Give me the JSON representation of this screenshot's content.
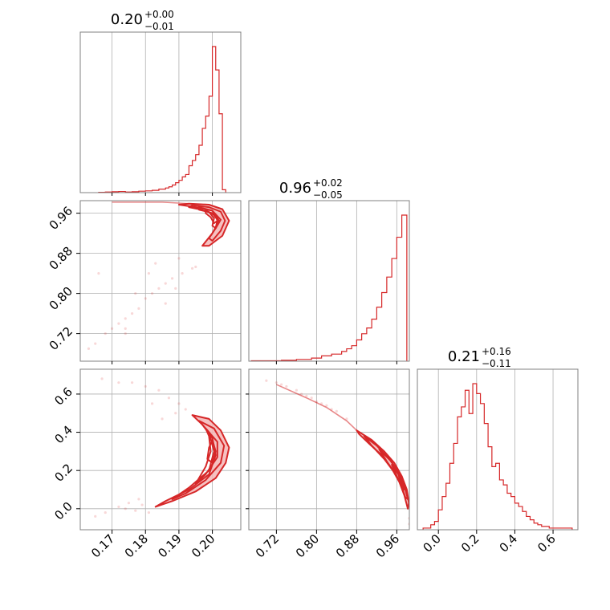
{
  "colors": {
    "series": "#d62728",
    "fill": "#f4b6b6",
    "grid": "#b0b0b0",
    "frame": "#808080"
  },
  "chart_data": {
    "type": "corner",
    "grid": true,
    "parameters": [
      {
        "title": "0.20",
        "title_plus": "+0.00",
        "title_minus": "−0.01",
        "range": [
          0.1605,
          0.2085
        ],
        "ticks": [
          0.17,
          0.18,
          0.19,
          0.2
        ],
        "tick_labels": [
          "0.17",
          "0.18",
          "0.19",
          "0.20"
        ]
      },
      {
        "title": "0.96",
        "title_plus": "+0.02",
        "title_minus": "−0.05",
        "range": [
          0.665,
          0.985
        ],
        "ticks": [
          0.72,
          0.8,
          0.88,
          0.96
        ],
        "tick_labels": [
          "0.72",
          "0.80",
          "0.88",
          "0.96"
        ]
      },
      {
        "title": "0.21",
        "title_plus": "+0.16",
        "title_minus": "−0.11",
        "range": [
          -0.11,
          0.73
        ],
        "ticks": [
          0.0,
          0.2,
          0.4,
          0.6
        ],
        "tick_labels": [
          "0.0",
          "0.2",
          "0.4",
          "0.6"
        ]
      }
    ],
    "histograms": [
      {
        "parameter_index": 0,
        "edges": [
          0.166,
          0.168,
          0.17,
          0.172,
          0.174,
          0.176,
          0.178,
          0.18,
          0.182,
          0.184,
          0.186,
          0.187,
          0.188,
          0.189,
          0.19,
          0.191,
          0.192,
          0.193,
          0.194,
          0.195,
          0.196,
          0.197,
          0.198,
          0.199,
          0.2,
          0.201,
          0.202,
          0.203,
          0.204
        ],
        "counts": [
          1,
          2,
          3,
          4,
          2,
          3,
          5,
          6,
          8,
          12,
          16,
          20,
          26,
          34,
          42,
          54,
          62,
          92,
          110,
          130,
          162,
          220,
          262,
          330,
          500,
          420,
          270,
          10
        ]
      },
      {
        "parameter_index": 1,
        "edges": [
          0.67,
          0.7,
          0.73,
          0.76,
          0.79,
          0.81,
          0.83,
          0.85,
          0.86,
          0.87,
          0.88,
          0.89,
          0.9,
          0.91,
          0.92,
          0.93,
          0.94,
          0.95,
          0.96,
          0.97,
          0.98
        ],
        "counts": [
          1,
          1,
          2,
          4,
          7,
          12,
          16,
          22,
          28,
          35,
          48,
          62,
          75,
          95,
          122,
          155,
          190,
          232,
          280,
          330
        ]
      },
      {
        "parameter_index": 2,
        "edges": [
          -0.08,
          -0.04,
          -0.02,
          0.0,
          0.02,
          0.04,
          0.06,
          0.08,
          0.1,
          0.12,
          0.14,
          0.16,
          0.18,
          0.2,
          0.22,
          0.24,
          0.26,
          0.28,
          0.3,
          0.32,
          0.34,
          0.36,
          0.38,
          0.4,
          0.42,
          0.44,
          0.46,
          0.48,
          0.5,
          0.52,
          0.54,
          0.56,
          0.58,
          0.62,
          0.66,
          0.7
        ],
        "counts": [
          1,
          3,
          5,
          12,
          20,
          28,
          40,
          52,
          68,
          74,
          84,
          70,
          88,
          82,
          76,
          64,
          50,
          38,
          40,
          30,
          27,
          22,
          20,
          16,
          14,
          11,
          8,
          6,
          4,
          3,
          2,
          2,
          1,
          1,
          1
        ]
      }
    ],
    "contours": [
      {
        "x_index": 0,
        "y_index": 1,
        "levels": [
          [
            [
              0.193,
              0.979
            ],
            [
              0.199,
              0.977
            ],
            [
              0.203,
              0.968
            ],
            [
              0.205,
              0.945
            ],
            [
              0.203,
              0.915
            ],
            [
              0.199,
              0.895
            ],
            [
              0.197,
              0.895
            ],
            [
              0.2,
              0.92
            ],
            [
              0.202,
              0.945
            ],
            [
              0.2,
              0.965
            ],
            [
              0.195,
              0.972
            ],
            [
              0.19,
              0.977
            ]
          ],
          [
            [
              0.194,
              0.976
            ],
            [
              0.199,
              0.972
            ],
            [
              0.2025,
              0.963
            ],
            [
              0.2038,
              0.945
            ],
            [
              0.2025,
              0.925
            ],
            [
              0.2,
              0.905
            ],
            [
              0.199,
              0.91
            ],
            [
              0.201,
              0.93
            ],
            [
              0.2015,
              0.947
            ],
            [
              0.2,
              0.96
            ],
            [
              0.196,
              0.968
            ],
            [
              0.193,
              0.972
            ]
          ],
          [
            [
              0.196,
              0.972
            ],
            [
              0.2,
              0.965
            ],
            [
              0.2025,
              0.947
            ],
            [
              0.201,
              0.93
            ],
            [
              0.2,
              0.935
            ],
            [
              0.2005,
              0.95
            ],
            [
              0.199,
              0.962
            ],
            [
              0.196,
              0.967
            ]
          ],
          [
            [
              0.198,
              0.966
            ],
            [
              0.201,
              0.955
            ],
            [
              0.2015,
              0.945
            ],
            [
              0.2005,
              0.94
            ],
            [
              0.1995,
              0.952
            ],
            [
              0.198,
              0.96
            ]
          ]
        ],
        "line": [
          [
            0.17,
            0.982
          ],
          [
            0.185,
            0.982
          ],
          [
            0.193,
            0.979
          ]
        ],
        "scatter": [
          [
            0.195,
            0.853
          ],
          [
            0.194,
            0.85
          ],
          [
            0.191,
            0.84
          ],
          [
            0.188,
            0.83
          ],
          [
            0.186,
            0.82
          ],
          [
            0.184,
            0.81
          ],
          [
            0.182,
            0.8
          ],
          [
            0.18,
            0.79
          ],
          [
            0.178,
            0.77
          ],
          [
            0.176,
            0.76
          ],
          [
            0.174,
            0.75
          ],
          [
            0.172,
            0.74
          ],
          [
            0.17,
            0.73
          ],
          [
            0.168,
            0.72
          ],
          [
            0.165,
            0.7
          ],
          [
            0.163,
            0.69
          ],
          [
            0.177,
            0.8
          ],
          [
            0.181,
            0.84
          ],
          [
            0.186,
            0.78
          ],
          [
            0.174,
            0.72
          ],
          [
            0.19,
            0.87
          ],
          [
            0.166,
            0.84
          ],
          [
            0.174,
            0.73
          ],
          [
            0.183,
            0.86
          ],
          [
            0.189,
            0.81
          ]
        ]
      },
      {
        "x_index": 0,
        "y_index": 2,
        "levels": [
          [
            [
              0.194,
              0.49
            ],
            [
              0.199,
              0.47
            ],
            [
              0.2025,
              0.41
            ],
            [
              0.205,
              0.32
            ],
            [
              0.204,
              0.24
            ],
            [
              0.201,
              0.16
            ],
            [
              0.195,
              0.09
            ],
            [
              0.188,
              0.04
            ],
            [
              0.183,
              0.01
            ],
            [
              0.186,
              0.04
            ],
            [
              0.193,
              0.1
            ],
            [
              0.199,
              0.18
            ],
            [
              0.201,
              0.28
            ],
            [
              0.2,
              0.37
            ],
            [
              0.197,
              0.44
            ]
          ],
          [
            [
              0.196,
              0.46
            ],
            [
              0.2005,
              0.42
            ],
            [
              0.2035,
              0.33
            ],
            [
              0.2025,
              0.24
            ],
            [
              0.198,
              0.15
            ],
            [
              0.192,
              0.08
            ],
            [
              0.188,
              0.05
            ],
            [
              0.193,
              0.11
            ],
            [
              0.199,
              0.2
            ],
            [
              0.2005,
              0.3
            ],
            [
              0.199,
              0.4
            ]
          ],
          [
            [
              0.198,
              0.42
            ],
            [
              0.2015,
              0.35
            ],
            [
              0.2015,
              0.27
            ],
            [
              0.198,
              0.18
            ],
            [
              0.195,
              0.13
            ],
            [
              0.198,
              0.22
            ],
            [
              0.1995,
              0.3
            ],
            [
              0.199,
              0.38
            ]
          ],
          [
            [
              0.2,
              0.36
            ],
            [
              0.201,
              0.3
            ],
            [
              0.2,
              0.24
            ],
            [
              0.1985,
              0.26
            ],
            [
              0.199,
              0.32
            ]
          ]
        ],
        "line": [],
        "scatter": [
          [
            0.167,
            0.68
          ],
          [
            0.172,
            0.66
          ],
          [
            0.176,
            0.66
          ],
          [
            0.18,
            0.64
          ],
          [
            0.184,
            0.62
          ],
          [
            0.187,
            0.58
          ],
          [
            0.19,
            0.55
          ],
          [
            0.192,
            0.52
          ],
          [
            0.182,
            0.55
          ],
          [
            0.178,
            0.05
          ],
          [
            0.175,
            0.03
          ],
          [
            0.172,
            0.01
          ],
          [
            0.168,
            -0.02
          ],
          [
            0.165,
            -0.04
          ],
          [
            0.181,
            -0.02
          ],
          [
            0.185,
            0.47
          ],
          [
            0.189,
            0.5
          ],
          [
            0.174,
            0.0
          ],
          [
            0.177,
            -0.01
          ],
          [
            0.179,
            0.02
          ]
        ]
      },
      {
        "x_index": 1,
        "y_index": 2,
        "levels": [
          [
            [
              0.88,
              0.41
            ],
            [
              0.91,
              0.36
            ],
            [
              0.935,
              0.3
            ],
            [
              0.955,
              0.24
            ],
            [
              0.97,
              0.17
            ],
            [
              0.98,
              0.1
            ],
            [
              0.984,
              0.03
            ],
            [
              0.982,
              0.0
            ],
            [
              0.975,
              0.07
            ],
            [
              0.965,
              0.14
            ],
            [
              0.95,
              0.21
            ],
            [
              0.93,
              0.28
            ],
            [
              0.905,
              0.34
            ],
            [
              0.885,
              0.39
            ]
          ],
          [
            [
              0.895,
              0.38
            ],
            [
              0.92,
              0.33
            ],
            [
              0.945,
              0.26
            ],
            [
              0.962,
              0.2
            ],
            [
              0.975,
              0.12
            ],
            [
              0.982,
              0.05
            ],
            [
              0.977,
              0.06
            ],
            [
              0.968,
              0.13
            ],
            [
              0.955,
              0.19
            ],
            [
              0.935,
              0.26
            ],
            [
              0.91,
              0.33
            ]
          ],
          [
            [
              0.925,
              0.31
            ],
            [
              0.948,
              0.25
            ],
            [
              0.965,
              0.18
            ],
            [
              0.975,
              0.1
            ],
            [
              0.969,
              0.12
            ],
            [
              0.958,
              0.18
            ],
            [
              0.942,
              0.24
            ]
          ],
          [
            [
              0.95,
              0.23
            ],
            [
              0.963,
              0.18
            ],
            [
              0.97,
              0.12
            ],
            [
              0.96,
              0.17
            ]
          ]
        ],
        "line": [
          [
            0.72,
            0.65
          ],
          [
            0.78,
            0.58
          ],
          [
            0.82,
            0.53
          ],
          [
            0.86,
            0.46
          ],
          [
            0.88,
            0.41
          ]
        ],
        "scatter": [
          [
            0.72,
            0.66
          ],
          [
            0.74,
            0.64
          ],
          [
            0.76,
            0.62
          ],
          [
            0.78,
            0.59
          ],
          [
            0.8,
            0.56
          ],
          [
            0.82,
            0.54
          ],
          [
            0.84,
            0.51
          ],
          [
            0.86,
            0.47
          ],
          [
            0.7,
            0.67
          ],
          [
            0.73,
            0.65
          ],
          [
            0.77,
            0.6
          ],
          [
            0.79,
            0.58
          ],
          [
            0.81,
            0.55
          ],
          [
            0.83,
            0.52
          ],
          [
            0.985,
            -0.05
          ],
          [
            0.985,
            -0.08
          ]
        ]
      }
    ]
  }
}
